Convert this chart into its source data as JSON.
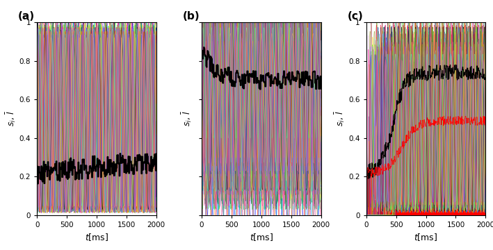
{
  "n_neurons": 80,
  "t_max": 2000,
  "dt": 0.5,
  "panel_labels": [
    "(a)",
    "(b)",
    "(c)"
  ],
  "xlabel": "t[ms]",
  "ylim": [
    0,
    1
  ],
  "yticks": [
    0,
    0.2,
    0.4,
    0.6,
    0.8,
    1
  ],
  "xticks": [
    0,
    500,
    1000,
    1500,
    2000
  ],
  "lw_neuron": 0.3,
  "lw_black": 1.5,
  "colors": [
    "#e6194b",
    "#3cb44b",
    "#ffe119",
    "#0082c8",
    "#f58231",
    "#911eb4",
    "#46f0f0",
    "#f032e6",
    "#d2f53c",
    "#fabebe",
    "#008080",
    "#e6beff",
    "#aa6e28",
    "#800000",
    "#aaffc3",
    "#808000",
    "#ffd8b1",
    "#000080",
    "#808080",
    "#FF6633",
    "#FF0000",
    "#00AA00",
    "#0000FF",
    "#FFDD00",
    "#FF00FF",
    "#00CCCC",
    "#FF8800",
    "#6600FF",
    "#00FF88",
    "#FF0088",
    "#99FF00",
    "#0088FF",
    "#FF4400",
    "#44FF00",
    "#0044FF",
    "#FF00AA",
    "#AAFF00",
    "#00AAFF",
    "#FF8844",
    "#44FF88",
    "#8844FF",
    "#FF4488",
    "#44CC44",
    "#4488FF",
    "#FF9900",
    "#88FF44",
    "#CC88FF",
    "#FF4488",
    "#88FF00",
    "#FF0044",
    "#cc6677",
    "#332288",
    "#117733",
    "#999933",
    "#88ccee",
    "#882255",
    "#44aa99",
    "#ddcc77",
    "#aa4499",
    "#648FFF",
    "#FE6100",
    "#785EF0",
    "#DC267F",
    "#FFB000",
    "#009E73",
    "#0072B2",
    "#D55E00",
    "#CC79A7",
    "#56B4E9",
    "#F0E442",
    "#E69F00",
    "#000000",
    "#AAAAAA",
    "#FF5555",
    "#55FF55",
    "#5555FF",
    "#FFAA55",
    "#AA55FF",
    "#55FFAA",
    "#FF55AA"
  ]
}
